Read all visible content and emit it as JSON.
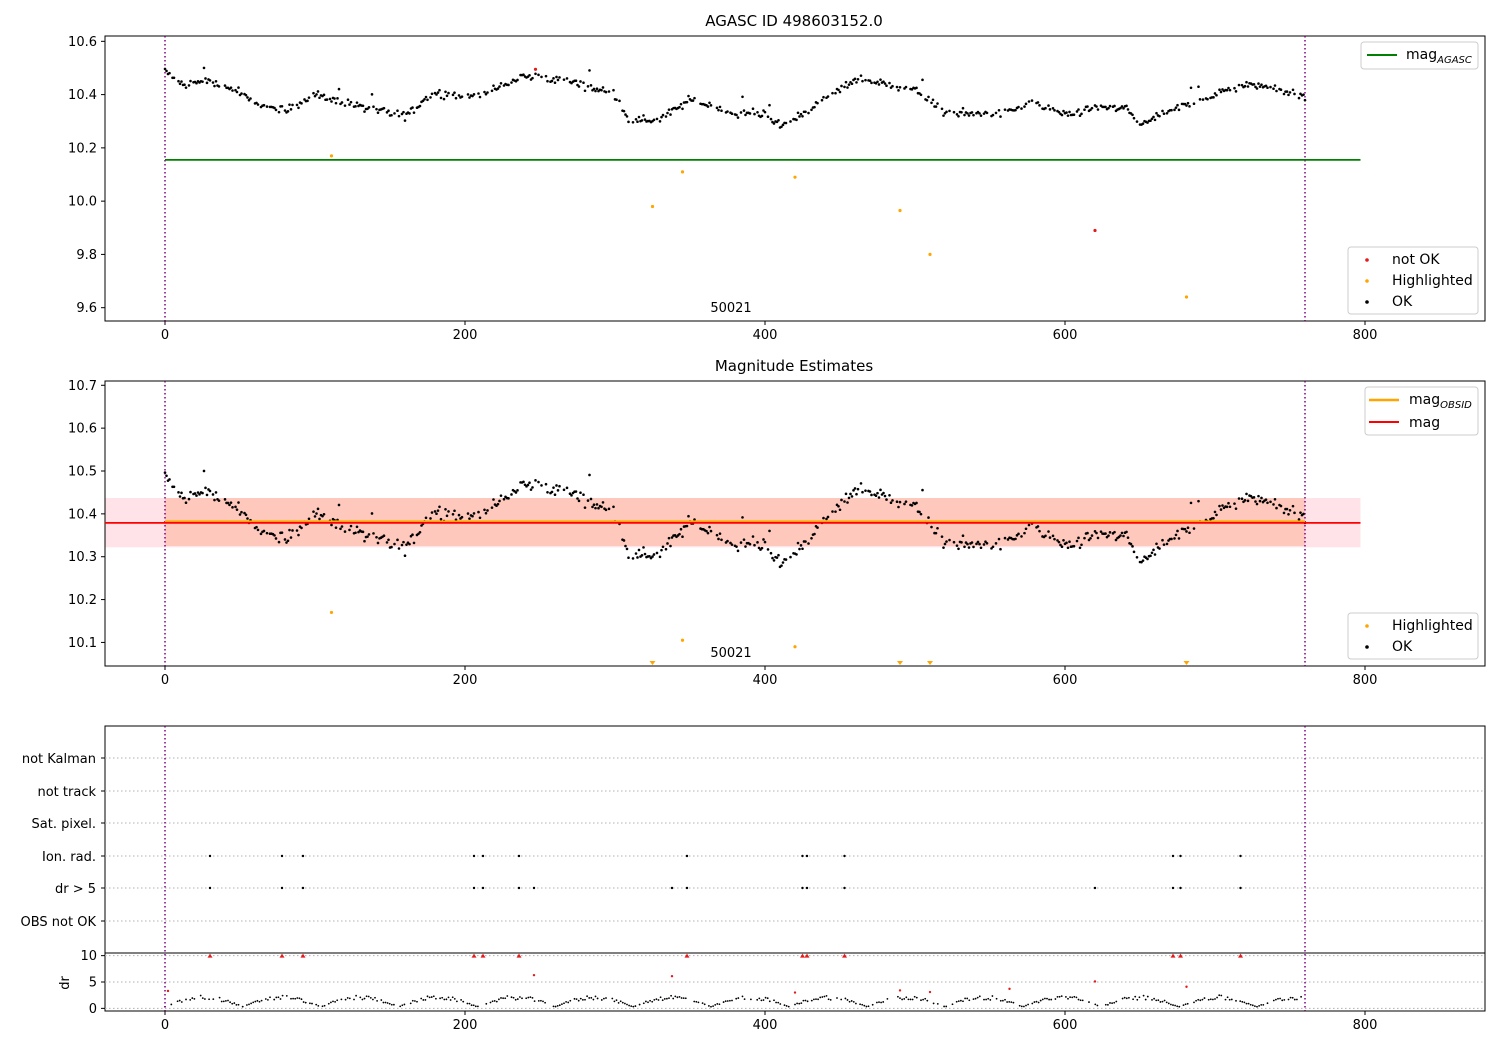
{
  "panels": {
    "top": {
      "title": "AGASC ID 498603152.0",
      "obsid_label": "50021",
      "legend_line": {
        "main": "mag",
        "sub": "AGASC"
      },
      "legend_points": [
        "not OK",
        "Highlighted",
        "OK"
      ]
    },
    "middle": {
      "title": "Magnitude Estimates",
      "obsid_label": "50021",
      "legend_lines": [
        {
          "main": "mag",
          "sub": "OBSID"
        },
        {
          "main": "mag",
          "sub": ""
        }
      ],
      "legend_points": [
        "Highlighted",
        "OK"
      ]
    },
    "flags": {
      "categories": [
        "not Kalman",
        "not track",
        "Sat. pixel.",
        "Ion. rad.",
        "dr > 5",
        "OBS not OK"
      ]
    },
    "dr": {
      "ylabel": "dr"
    }
  },
  "colors": {
    "ok": "#000000",
    "not_ok": "#e41a1c",
    "highlighted": "#ffa500",
    "agasc_line": "#008000",
    "obsid_line": "#ffa500",
    "mag_line": "#ff0000",
    "obs_boundary": "#800080",
    "band_outer": "#ffc0cb",
    "band_inner": "#ffa07a"
  },
  "chart_data": [
    {
      "type": "scatter",
      "title": "AGASC ID 498603152.0",
      "xlim": [
        -40,
        880
      ],
      "ylim": [
        9.55,
        10.62
      ],
      "xticks": [
        0,
        200,
        400,
        600,
        800
      ],
      "yticks": [
        9.6,
        9.8,
        10.0,
        10.2,
        10.4,
        10.6
      ],
      "ytick_labels": [
        "9.6",
        "9.8",
        "10.0",
        "10.2",
        "10.4",
        "10.6"
      ],
      "mag_agasc": 10.155,
      "obs_boundaries": [
        0,
        760
      ],
      "legend_placement": [
        "top-right",
        "bottom-right"
      ],
      "ok_trend": [
        [
          0,
          10.49
        ],
        [
          10,
          10.44
        ],
        [
          30,
          10.45
        ],
        [
          50,
          10.41
        ],
        [
          60,
          10.36
        ],
        [
          80,
          10.34
        ],
        [
          100,
          10.4
        ],
        [
          120,
          10.37
        ],
        [
          140,
          10.34
        ],
        [
          160,
          10.32
        ],
        [
          180,
          10.41
        ],
        [
          200,
          10.39
        ],
        [
          220,
          10.42
        ],
        [
          240,
          10.47
        ],
        [
          270,
          10.45
        ],
        [
          300,
          10.4
        ],
        [
          310,
          10.3
        ],
        [
          330,
          10.31
        ],
        [
          350,
          10.38
        ],
        [
          380,
          10.33
        ],
        [
          400,
          10.33
        ],
        [
          410,
          10.28
        ],
        [
          440,
          10.38
        ],
        [
          460,
          10.46
        ],
        [
          480,
          10.44
        ],
        [
          500,
          10.42
        ],
        [
          520,
          10.33
        ],
        [
          540,
          10.33
        ],
        [
          560,
          10.33
        ],
        [
          580,
          10.37
        ],
        [
          600,
          10.32
        ],
        [
          620,
          10.35
        ],
        [
          640,
          10.35
        ],
        [
          650,
          10.29
        ],
        [
          680,
          10.36
        ],
        [
          700,
          10.4
        ],
        [
          720,
          10.44
        ],
        [
          740,
          10.43
        ],
        [
          760,
          10.39
        ]
      ],
      "highlighted_points": [
        [
          111,
          10.17
        ],
        [
          325,
          9.98
        ],
        [
          345,
          10.11
        ],
        [
          420,
          10.09
        ],
        [
          490,
          9.965
        ],
        [
          510,
          9.8
        ],
        [
          681,
          9.64
        ]
      ],
      "not_ok_points": [
        [
          247,
          10.495
        ],
        [
          620,
          9.89
        ]
      ]
    },
    {
      "type": "scatter",
      "title": "Magnitude Estimates",
      "xlim": [
        -40,
        880
      ],
      "ylim": [
        10.045,
        10.71
      ],
      "xticks": [
        0,
        200,
        400,
        600,
        800
      ],
      "yticks": [
        10.1,
        10.2,
        10.3,
        10.4,
        10.5,
        10.6,
        10.7
      ],
      "ytick_labels": [
        "10.1",
        "10.2",
        "10.3",
        "10.4",
        "10.5",
        "10.6",
        "10.7"
      ],
      "mag": 10.379,
      "mag_obsid": 10.382,
      "mag_band": [
        10.322,
        10.437
      ],
      "obsid_band": [
        10.325,
        10.437
      ],
      "obs_boundaries": [
        0,
        760
      ],
      "legend_placement": [
        "top-right",
        "bottom-right"
      ],
      "highlighted_points": [
        [
          111,
          10.17
        ],
        [
          345,
          10.105
        ],
        [
          420,
          10.09
        ]
      ],
      "highlighted_offscale_x": [
        325,
        490,
        510,
        681
      ]
    },
    {
      "type": "scatter",
      "xlim": [
        -40,
        880
      ],
      "categories": [
        "not Kalman",
        "not track",
        "Sat. pixel.",
        "Ion. rad.",
        "dr > 5",
        "OBS not OK"
      ],
      "ion_rad_x": [
        30,
        78,
        92,
        206,
        212,
        236,
        348,
        425,
        428,
        453,
        672,
        677,
        717
      ],
      "dr5_x": [
        30,
        78,
        92,
        206,
        212,
        236,
        246,
        338,
        348,
        425,
        428,
        453,
        620,
        672,
        677,
        717
      ]
    },
    {
      "type": "scatter",
      "xlim": [
        -40,
        880
      ],
      "ylim": [
        -0.5,
        10.5
      ],
      "xticks": [
        0,
        200,
        400,
        600,
        800
      ],
      "yticks": [
        0,
        5,
        10
      ],
      "ytick_labels": [
        "0",
        "5",
        "10"
      ],
      "ylabel": "dr",
      "clipped_x": [
        30,
        78,
        92,
        206,
        212,
        236,
        348,
        425,
        428,
        453,
        672,
        677,
        717
      ],
      "outliers": [
        [
          2,
          3.3
        ],
        [
          246,
          6.3
        ],
        [
          338,
          6.1
        ],
        [
          420,
          3
        ],
        [
          490,
          3.4
        ],
        [
          510,
          3.1
        ],
        [
          563,
          3.7
        ],
        [
          620,
          5.1
        ],
        [
          681,
          4.1
        ]
      ]
    }
  ]
}
